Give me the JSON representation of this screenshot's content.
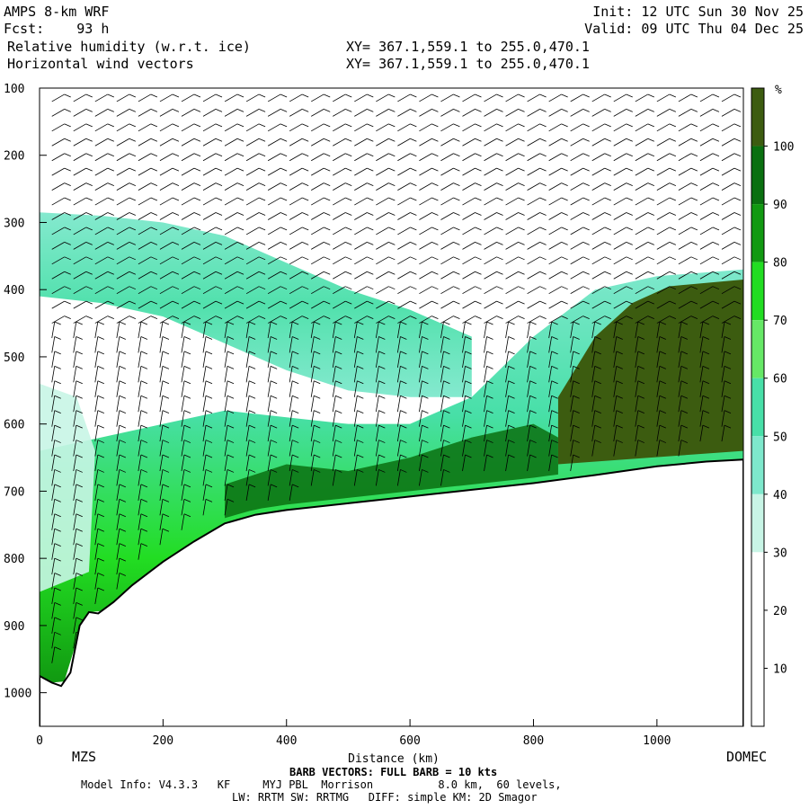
{
  "header": {
    "model": "AMPS 8-km WRF",
    "fcst_label": "Fcst:",
    "fcst_value": "93 h",
    "field1": "Relative humidity (w.r.t. ice)",
    "field2": "Horizontal wind vectors",
    "xy1": "XY= 367.1,559.1 to 255.0,470.1",
    "xy2": "XY= 367.1,559.1 to 255.0,470.1",
    "init": "Init: 12 UTC Sun 30 Nov 25",
    "valid": "Valid: 09 UTC Thu 04 Dec 25"
  },
  "footer": {
    "left_station": "MZS",
    "right_station": "DOMEC",
    "barb_note": "BARB VECTORS: FULL BARB = 10 kts",
    "model_info": "Model Info: V4.3.3   KF     MYJ PBL  Morrison          8.0 km,  60 levels,",
    "model_info2": "LW: RRTM SW: RRTMG   DIFF: simple KM: 2D Smagor"
  },
  "chart_data": {
    "type": "heatmap",
    "title": "Relative humidity (w.r.t. ice)",
    "xlabel": "Distance (km)",
    "ylabel": "",
    "xlim": [
      0,
      1140
    ],
    "ylim": [
      1050,
      100
    ],
    "xticks": [
      0,
      200,
      400,
      600,
      800,
      1000
    ],
    "yticks": [
      100,
      200,
      300,
      400,
      500,
      600,
      700,
      800,
      900,
      1000
    ],
    "colorbar": {
      "unit": "%",
      "levels": [
        10,
        20,
        30,
        40,
        50,
        60,
        70,
        80,
        90,
        100
      ],
      "colors": [
        "#ffffff",
        "#ffffff",
        "#ffffff",
        "#c8f5e6",
        "#7ee8cc",
        "#48dfa8",
        "#66e866",
        "#22dd22",
        "#119911",
        "#0a7010",
        "#3c5c10"
      ]
    },
    "terrain_surface_pressure": {
      "x": [
        0,
        20,
        35,
        50,
        65,
        80,
        95,
        120,
        150,
        200,
        250,
        300,
        350,
        400,
        500,
        600,
        700,
        800,
        900,
        1000,
        1080,
        1140
      ],
      "p": [
        975,
        985,
        990,
        970,
        900,
        880,
        882,
        865,
        840,
        805,
        775,
        748,
        735,
        728,
        718,
        708,
        698,
        688,
        676,
        663,
        656,
        653
      ]
    },
    "moist_layers": [
      {
        "name": "upper moist layer",
        "x": [
          0,
          100,
          200,
          300,
          400,
          500,
          600,
          700
        ],
        "p_top": [
          285,
          290,
          300,
          320,
          360,
          400,
          430,
          470
        ],
        "p_bottom": [
          410,
          420,
          440,
          480,
          520,
          550,
          560,
          560
        ],
        "rh_min": 40,
        "rh_max": 60
      },
      {
        "name": "lower moist layer",
        "x": [
          0,
          100,
          200,
          300,
          400,
          500,
          600,
          700,
          800,
          900,
          1000,
          1140
        ],
        "p_top": [
          640,
          620,
          600,
          580,
          590,
          600,
          600,
          560,
          470,
          400,
          380,
          370
        ],
        "rh_min": 50,
        "rh_max": 100
      }
    ],
    "wind_barbs": {
      "note": "BARB VECTORS: FULL BARB = 10 kts"
    }
  }
}
